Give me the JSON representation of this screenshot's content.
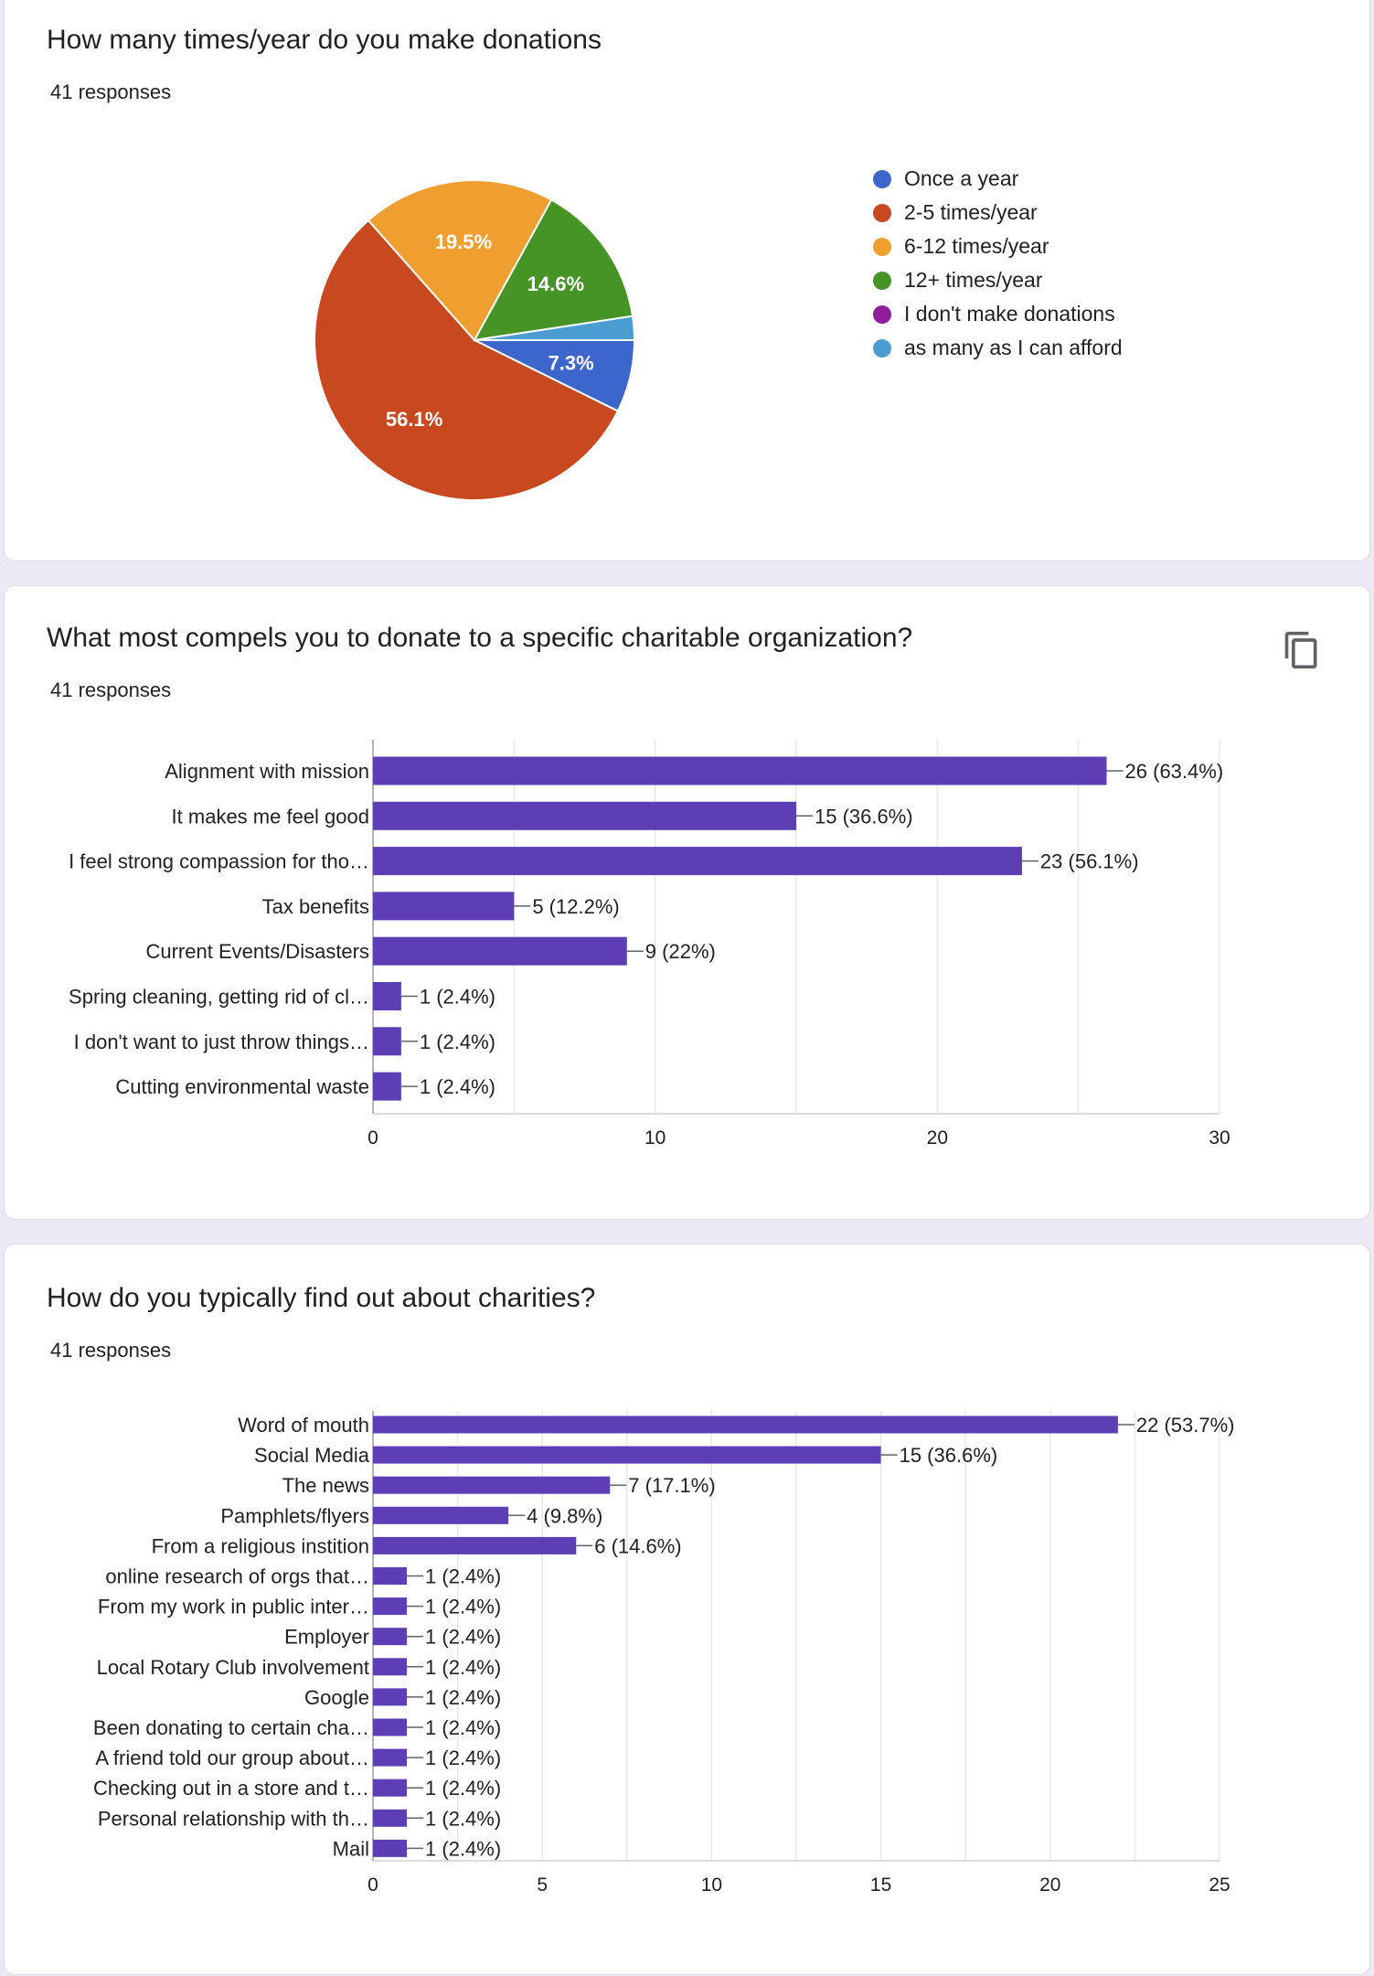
{
  "cards": [
    {
      "title": "How many times/year do you make donations",
      "responses": "41 responses"
    },
    {
      "title": "What most compels you to donate to a specific charitable organization?",
      "responses": "41 responses"
    },
    {
      "title": "How do you typically find out about charities?",
      "responses": "41 responses"
    }
  ],
  "colors": {
    "bar": "#5e3eb4",
    "page_background": "#ece9f5",
    "card": "#ffffff"
  },
  "chart_data": [
    {
      "type": "pie",
      "title": "How many times/year do you make donations",
      "slices": [
        {
          "label": "Once a year",
          "value": 7.3,
          "color": "#3d66cc",
          "data_label": "7.3%"
        },
        {
          "label": "2-5 times/year",
          "value": 56.1,
          "color": "#c8491f",
          "data_label": "56.1%"
        },
        {
          "label": "6-12 times/year",
          "value": 19.5,
          "color": "#ee9f30",
          "data_label": "19.5%"
        },
        {
          "label": "12+ times/year",
          "value": 14.6,
          "color": "#469326",
          "data_label": "14.6%"
        },
        {
          "label": "I don't make donations",
          "value": 0,
          "color": "#8f1e9c",
          "data_label": ""
        },
        {
          "label": "as many as I can afford",
          "value": 2.4,
          "color": "#4a9dd0",
          "data_label": ""
        }
      ],
      "legend": "right"
    },
    {
      "type": "bar",
      "orientation": "horizontal",
      "title": "What most compels you to donate to a specific charitable organization?",
      "categories": [
        "Alignment with mission",
        "It makes me feel good",
        "I feel strong compassion for tho…",
        "Tax benefits",
        "Current Events/Disasters",
        "Spring cleaning, getting rid of cl…",
        "I don't want to just throw things…",
        "Cutting environmental waste"
      ],
      "values": [
        26,
        15,
        23,
        5,
        9,
        1,
        1,
        1
      ],
      "data_labels": [
        "26 (63.4%)",
        "15 (36.6%)",
        "23 (56.1%)",
        "5 (12.2%)",
        "9 (22%)",
        "1 (2.4%)",
        "1 (2.4%)",
        "1 (2.4%)"
      ],
      "xlim": [
        0,
        30
      ],
      "xticks": [
        0,
        10,
        20,
        30
      ],
      "grid": true
    },
    {
      "type": "bar",
      "orientation": "horizontal",
      "title": "How do you typically find out about charities?",
      "categories": [
        "Word of mouth",
        "Social Media",
        "The news",
        "Pamphlets/flyers",
        "From a religious instition",
        "online research of orgs that…",
        "From my work in public inter…",
        "Employer",
        "Local Rotary Club involvement",
        "Google",
        "Been donating to certain cha…",
        "A friend told our group about…",
        "Checking out in a store and t…",
        "Personal relationship with th…",
        "Mail"
      ],
      "values": [
        22,
        15,
        7,
        4,
        6,
        1,
        1,
        1,
        1,
        1,
        1,
        1,
        1,
        1,
        1
      ],
      "data_labels": [
        "22 (53.7%)",
        "15 (36.6%)",
        "7 (17.1%)",
        "4 (9.8%)",
        "6 (14.6%)",
        "1 (2.4%)",
        "1 (2.4%)",
        "1 (2.4%)",
        "1 (2.4%)",
        "1 (2.4%)",
        "1 (2.4%)",
        "1 (2.4%)",
        "1 (2.4%)",
        "1 (2.4%)",
        "1 (2.4%)"
      ],
      "xlim": [
        0,
        25
      ],
      "xticks": [
        0,
        5,
        10,
        15,
        20,
        25
      ],
      "grid": true
    }
  ]
}
